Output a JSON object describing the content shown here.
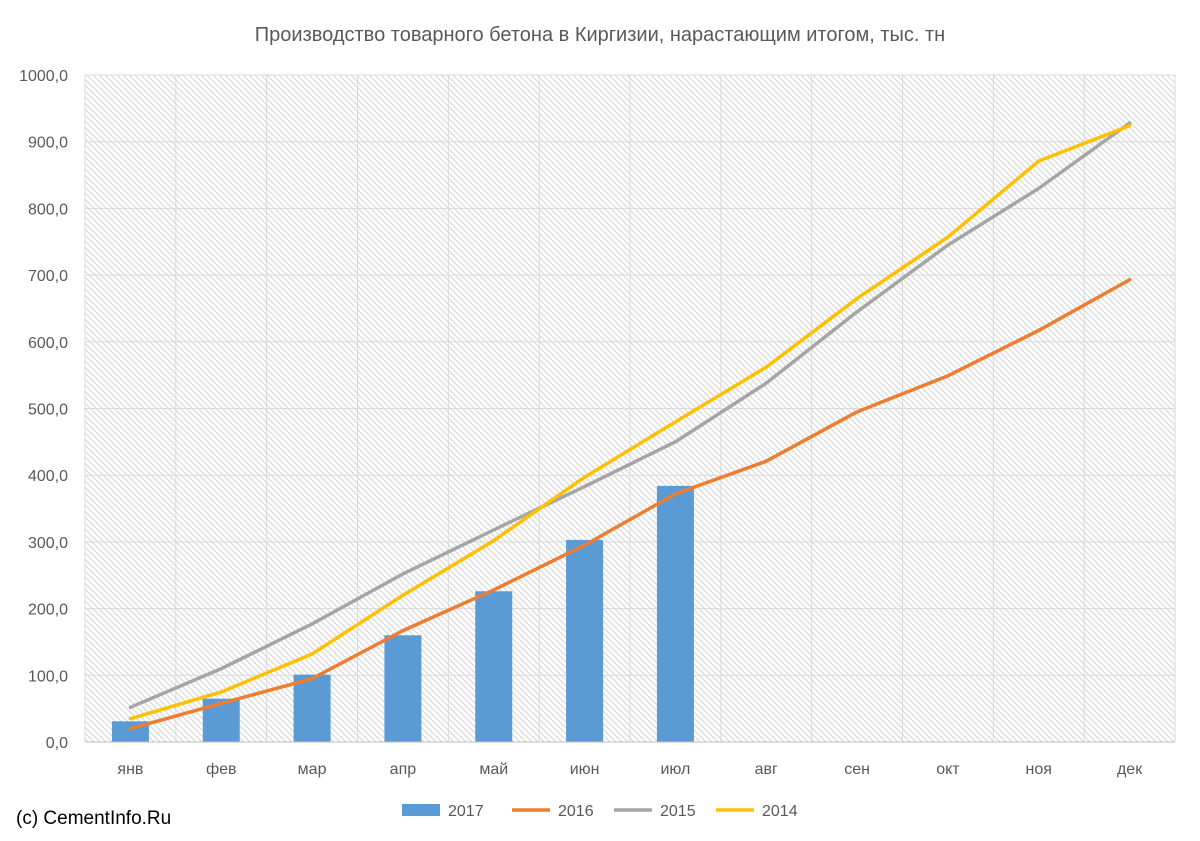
{
  "copyright": "(c) CementInfo.Ru",
  "chart_data": {
    "type": "bar",
    "title": "Производство товарного бетона в Киргизии, нарастающим итогом, тыс. тн",
    "xlabel": "",
    "ylabel": "",
    "categories": [
      "янв",
      "фев",
      "мар",
      "апр",
      "май",
      "июн",
      "июл",
      "авг",
      "сен",
      "окт",
      "ноя",
      "дек"
    ],
    "ylim": [
      0,
      1000
    ],
    "yticks": [
      "0,0",
      "100,0",
      "200,0",
      "300,0",
      "400,0",
      "500,0",
      "600,0",
      "700,0",
      "800,0",
      "900,0",
      "1000,0"
    ],
    "grid": true,
    "legend": "bottom",
    "series": [
      {
        "name": "2017",
        "type": "bar",
        "color": "#5b9bd5",
        "values": [
          31,
          65,
          101,
          160,
          226,
          303,
          384,
          null,
          null,
          null,
          null,
          null
        ]
      },
      {
        "name": "2016",
        "type": "line",
        "color": "#ed7d31",
        "values": [
          20,
          58,
          95,
          167,
          228,
          295,
          372,
          421,
          495,
          549,
          617,
          693
        ]
      },
      {
        "name": "2015",
        "type": "line",
        "color": "#a5a5a5",
        "values": [
          52,
          110,
          177,
          252,
          318,
          383,
          450,
          538,
          645,
          745,
          830,
          928
        ]
      },
      {
        "name": "2014",
        "type": "line",
        "color": "#ffc000",
        "values": [
          35,
          75,
          132,
          220,
          302,
          397,
          480,
          562,
          665,
          757,
          871,
          924
        ]
      }
    ]
  }
}
